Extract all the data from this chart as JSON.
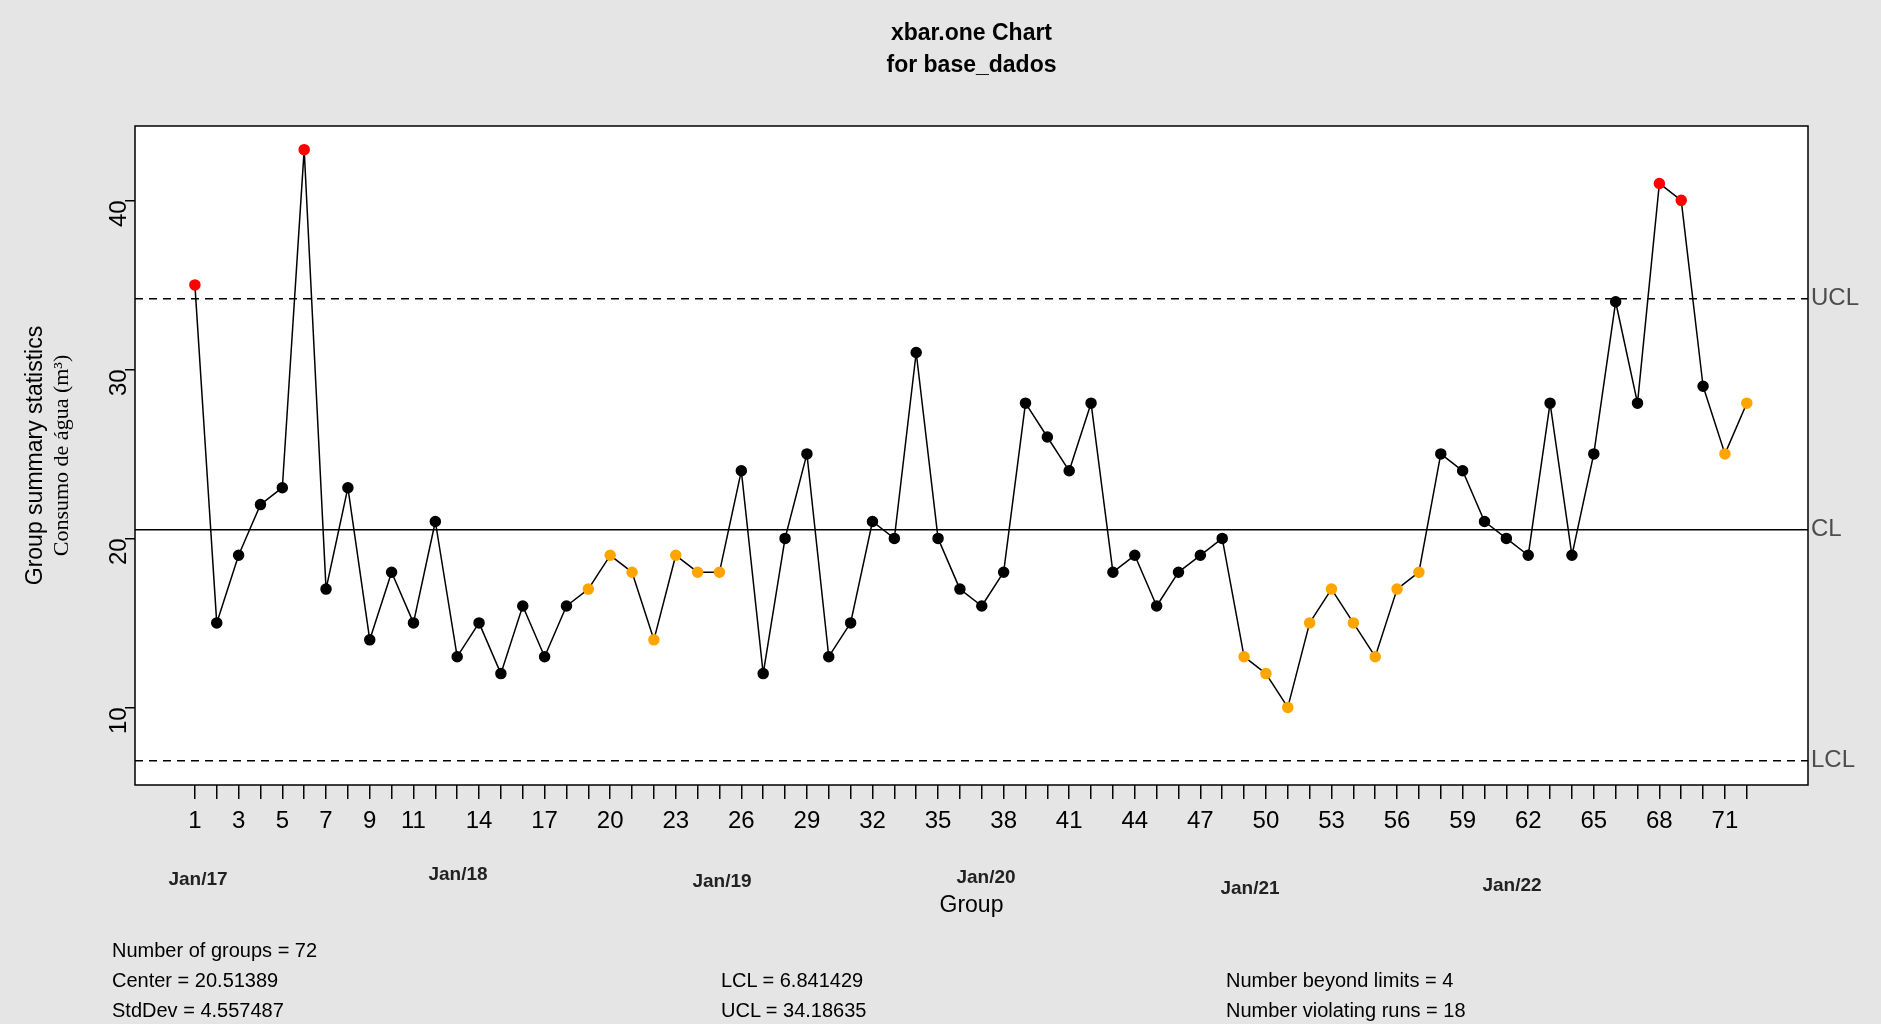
{
  "chart_data": {
    "type": "line",
    "title": "xbar.one Chart",
    "subtitle": "for base_dados",
    "xlabel": "Group",
    "ylabel": "Group summary statistics\nConsumo de água (m³)",
    "x": [
      1,
      2,
      3,
      4,
      5,
      6,
      7,
      8,
      9,
      10,
      11,
      12,
      13,
      14,
      15,
      16,
      17,
      18,
      19,
      20,
      21,
      22,
      23,
      24,
      25,
      26,
      27,
      28,
      29,
      30,
      31,
      32,
      33,
      34,
      35,
      36,
      37,
      38,
      39,
      40,
      41,
      42,
      43,
      44,
      45,
      46,
      47,
      48,
      49,
      50,
      51,
      52,
      53,
      54,
      55,
      56,
      57,
      58,
      59,
      60,
      61,
      62,
      63,
      64,
      65,
      66,
      67,
      68,
      69,
      70,
      71,
      72
    ],
    "series": [
      {
        "color": "#000000",
        "values": [
          35,
          15,
          19,
          22,
          23,
          43,
          17,
          23,
          14,
          18,
          15,
          21,
          13,
          15,
          12,
          16,
          13,
          16,
          17,
          19,
          18,
          14,
          19,
          18,
          18,
          24,
          12,
          20,
          25,
          13,
          15,
          21,
          20,
          31,
          20,
          17,
          16,
          18,
          28,
          26,
          24,
          28,
          18,
          19,
          16,
          18,
          19,
          20,
          13,
          12,
          10,
          15,
          17,
          15,
          13,
          17,
          18,
          25,
          24,
          21,
          20,
          19,
          28,
          19,
          25,
          34,
          28,
          41,
          40,
          29,
          25,
          28
        ],
        "colors": [
          "#ff0000",
          "#000000",
          "#000000",
          "#000000",
          "#000000",
          "#ff0000",
          "#000000",
          "#000000",
          "#000000",
          "#000000",
          "#000000",
          "#000000",
          "#000000",
          "#000000",
          "#000000",
          "#000000",
          "#000000",
          "#000000",
          "#ffa500",
          "#ffa500",
          "#ffa500",
          "#ffa500",
          "#ffa500",
          "#ffa500",
          "#ffa500",
          "#000000",
          "#000000",
          "#000000",
          "#000000",
          "#000000",
          "#000000",
          "#000000",
          "#000000",
          "#000000",
          "#000000",
          "#000000",
          "#000000",
          "#000000",
          "#000000",
          "#000000",
          "#000000",
          "#000000",
          "#000000",
          "#000000",
          "#000000",
          "#000000",
          "#000000",
          "#000000",
          "#ffa500",
          "#ffa500",
          "#ffa500",
          "#ffa500",
          "#ffa500",
          "#ffa500",
          "#ffa500",
          "#ffa500",
          "#ffa500",
          "#000000",
          "#000000",
          "#000000",
          "#000000",
          "#000000",
          "#000000",
          "#000000",
          "#000000",
          "#000000",
          "#000000",
          "#ff0000",
          "#ff0000",
          "#000000",
          "#ffa500",
          "#ffa500"
        ]
      }
    ],
    "marker": "circle",
    "line_style": "solid",
    "xlim": [
      -1.74,
      74.8
    ],
    "xticks": [
      1,
      {
        "value": 2,
        "label": null
      },
      3,
      {
        "value": 4,
        "label": null
      },
      5,
      {
        "value": 6,
        "label": null
      },
      7,
      {
        "value": 8,
        "label": null
      },
      9,
      {
        "value": 10,
        "label": null
      },
      11,
      {
        "value": 12,
        "label": null
      },
      {
        "value": 13,
        "label": null
      },
      14,
      {
        "value": 15,
        "label": null
      },
      {
        "value": 16,
        "label": null
      },
      17,
      {
        "value": 18,
        "label": null
      },
      {
        "value": 19,
        "label": null
      },
      20,
      {
        "value": 21,
        "label": null
      },
      {
        "value": 22,
        "label": null
      },
      23,
      {
        "value": 24,
        "label": null
      },
      {
        "value": 25,
        "label": null
      },
      26,
      {
        "value": 27,
        "label": null
      },
      {
        "value": 28,
        "label": null
      },
      29,
      {
        "value": 30,
        "label": null
      },
      {
        "value": 31,
        "label": null
      },
      32,
      {
        "value": 33,
        "label": null
      },
      {
        "value": 34,
        "label": null
      },
      35,
      {
        "value": 36,
        "label": null
      },
      {
        "value": 37,
        "label": null
      },
      38,
      {
        "value": 39,
        "label": null
      },
      {
        "value": 40,
        "label": null
      },
      41,
      {
        "value": 42,
        "label": null
      },
      {
        "value": 43,
        "label": null
      },
      44,
      {
        "value": 45,
        "label": null
      },
      {
        "value": 46,
        "label": null
      },
      47,
      {
        "value": 48,
        "label": null
      },
      {
        "value": 49,
        "label": null
      },
      50,
      {
        "value": 51,
        "label": null
      },
      {
        "value": 52,
        "label": null
      },
      53,
      {
        "value": 54,
        "label": null
      },
      {
        "value": 55,
        "label": null
      },
      56,
      {
        "value": 57,
        "label": null
      },
      {
        "value": 58,
        "label": null
      },
      59,
      {
        "value": 60,
        "label": null
      },
      {
        "value": 61,
        "label": null
      },
      62,
      {
        "value": 63,
        "label": null
      },
      {
        "value": 64,
        "label": null
      },
      65,
      {
        "value": 66,
        "label": null
      },
      {
        "value": 67,
        "label": null
      },
      68,
      {
        "value": 69,
        "label": null
      },
      {
        "value": 70,
        "label": null
      },
      71,
      {
        "value": 72,
        "label": null
      }
    ],
    "ylim": [
      5.41,
      44.4
    ],
    "yticks": [
      10,
      20,
      30,
      40
    ],
    "ref_lines": [
      {
        "axis": "y",
        "value": 34.18635,
        "label": "UCL",
        "line_style": "dashed"
      },
      {
        "axis": "y",
        "value": 20.51389,
        "label": "CL",
        "line_style": "solid"
      },
      {
        "axis": "y",
        "value": 6.841429,
        "label": "LCL",
        "line_style": "dashed"
      }
    ],
    "annotations": [
      "Jan/17",
      "Jan/18",
      "Jan/19",
      "Jan/20",
      "Jan/21",
      "Jan/22",
      "Number of groups = 72",
      "Center = 20.51389",
      "StdDev = 4.557487",
      "LCL = 6.841429",
      "UCL = 34.18635",
      "Number beyond limits = 4",
      "Number violating runs = 18"
    ]
  }
}
